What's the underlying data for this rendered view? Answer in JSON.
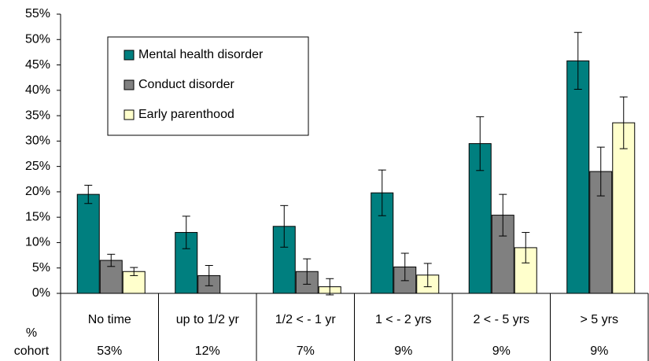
{
  "chart_data": {
    "type": "bar",
    "categories": [
      "No time",
      "up to 1/2 yr",
      "1/2 < - 1 yr",
      "1 < - 2 yrs",
      "2 < - 5 yrs",
      "> 5 yrs"
    ],
    "series": [
      {
        "name": "Mental health disorder",
        "color": "#007f7f",
        "values": [
          19.5,
          12,
          13.2,
          19.8,
          29.5,
          45.8
        ],
        "errors": [
          1.8,
          3.2,
          4.1,
          4.5,
          5.3,
          5.6
        ]
      },
      {
        "name": "Conduct disorder",
        "color": "#808080",
        "values": [
          6.5,
          3.5,
          4.3,
          5.2,
          15.4,
          24
        ],
        "errors": [
          1.2,
          2,
          2.5,
          2.7,
          4.1,
          4.8
        ]
      },
      {
        "name": "Early parenthood",
        "color": "#ffffcc",
        "values": [
          4.3,
          0,
          1.3,
          3.6,
          9,
          33.6
        ],
        "errors": [
          0.8,
          null,
          1.6,
          2.3,
          3,
          5.1
        ]
      }
    ],
    "ylim": [
      0,
      55
    ],
    "yticks": [
      {
        "value": 0,
        "label": "0%"
      },
      {
        "value": 5,
        "label": "5%"
      },
      {
        "value": 10,
        "label": "10%"
      },
      {
        "value": 15,
        "label": "15%"
      },
      {
        "value": 20,
        "label": "20%"
      },
      {
        "value": 25,
        "label": "25%"
      },
      {
        "value": 30,
        "label": "30%"
      },
      {
        "value": 35,
        "label": "35%"
      },
      {
        "value": 40,
        "label": "40%"
      },
      {
        "value": 45,
        "label": "45%"
      },
      {
        "value": 50,
        "label": "50%"
      },
      {
        "value": 55,
        "label": "55%"
      }
    ],
    "legend": "upper left",
    "cohort_header": [
      "%",
      "cohort"
    ],
    "cohort": [
      "53%",
      "12%",
      "7%",
      "9%",
      "9%",
      "9%"
    ]
  }
}
